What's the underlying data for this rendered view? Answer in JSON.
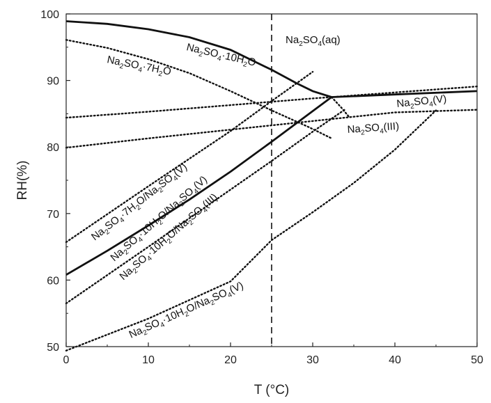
{
  "chart_data": {
    "type": "line",
    "title": "",
    "xlabel": "T (°C)",
    "ylabel": "RH(%)",
    "xlim": [
      0,
      50
    ],
    "ylim": [
      50,
      100
    ],
    "xticks": [
      0,
      10,
      20,
      30,
      40,
      50
    ],
    "yticks": [
      50,
      60,
      70,
      80,
      90,
      100
    ],
    "grid": false,
    "vertical_reference": {
      "x": 25,
      "style": "dashed"
    },
    "series": [
      {
        "style": "solid",
        "x": [
          0,
          5,
          10,
          15,
          20,
          25,
          28,
          30,
          32.3
        ],
        "y": [
          98.9,
          98.5,
          97.7,
          96.5,
          94.6,
          91.6,
          89.6,
          88.4,
          87.5
        ]
      },
      {
        "style": "solid",
        "x": [
          32.3,
          40,
          50
        ],
        "y": [
          87.5,
          87.9,
          88.4
        ]
      },
      {
        "style": "solid",
        "x": [
          0,
          5,
          10,
          15,
          20,
          25,
          30,
          32.3
        ],
        "y": [
          60.8,
          64.4,
          68.2,
          72.1,
          76.3,
          80.8,
          85.4,
          87.5
        ]
      },
      {
        "style": "dotted",
        "x": [
          0,
          5,
          10,
          15,
          20,
          25,
          29.5,
          32.3
        ],
        "y": [
          96.1,
          94.9,
          93.2,
          91.1,
          88.4,
          85.5,
          83.0,
          81.3
        ]
      },
      {
        "style": "dotted",
        "x": [
          0,
          10,
          20,
          25,
          30
        ],
        "y": [
          65.7,
          74.1,
          82.4,
          86.9,
          91.3
        ]
      },
      {
        "style": "dotted",
        "x": [
          0,
          10,
          20,
          30,
          32.3,
          40,
          50
        ],
        "y": [
          84.4,
          85.3,
          86.3,
          87.3,
          87.5,
          88.2,
          89.1
        ]
      },
      {
        "style": "dotted",
        "x": [
          0,
          10,
          20,
          30,
          40,
          50
        ],
        "y": [
          79.9,
          81.3,
          82.6,
          83.9,
          85.2,
          85.6
        ]
      },
      {
        "style": "dotted",
        "x": [
          32.3,
          33.5,
          34.5
        ],
        "y": [
          87.5,
          85.9,
          84.4
        ]
      },
      {
        "style": "dotted",
        "x": [
          0,
          10,
          20,
          25,
          30,
          34
        ],
        "y": [
          56.5,
          65.0,
          73.6,
          77.9,
          82.3,
          85.7
        ]
      },
      {
        "style": "dotted",
        "x": [
          0,
          10,
          20,
          25,
          30,
          35,
          40,
          45
        ],
        "y": [
          49.4,
          54.2,
          59.8,
          66.0,
          70.2,
          74.6,
          79.6,
          85.5
        ]
      }
    ],
    "annotations": [
      {
        "parts": [
          [
            "Na",
            ""
          ],
          [
            "2",
            "sub"
          ],
          [
            "SO",
            ""
          ],
          [
            "4",
            "sub"
          ],
          [
            "(aq)",
            ""
          ]
        ]
      },
      {
        "parts": [
          [
            "Na",
            ""
          ],
          [
            "2",
            "sub"
          ],
          [
            "SO",
            ""
          ],
          [
            "4",
            "sub"
          ],
          [
            "·10H",
            ""
          ],
          [
            "2",
            "sub"
          ],
          [
            "O",
            ""
          ]
        ]
      },
      {
        "parts": [
          [
            "Na",
            ""
          ],
          [
            "2",
            "sub"
          ],
          [
            "SO",
            ""
          ],
          [
            "4",
            "sub"
          ],
          [
            "·7H",
            ""
          ],
          [
            "2",
            "sub"
          ],
          [
            "O",
            ""
          ]
        ]
      },
      {
        "parts": [
          [
            "Na",
            ""
          ],
          [
            "2",
            "sub"
          ],
          [
            "SO",
            ""
          ],
          [
            "4",
            "sub"
          ],
          [
            "(V)",
            ""
          ]
        ]
      },
      {
        "parts": [
          [
            "Na",
            ""
          ],
          [
            "2",
            "sub"
          ],
          [
            "SO",
            ""
          ],
          [
            "4",
            "sub"
          ],
          [
            "(III)",
            ""
          ]
        ]
      },
      {
        "parts": [
          [
            "Na",
            ""
          ],
          [
            "2",
            "sub"
          ],
          [
            "SO",
            ""
          ],
          [
            "4",
            "sub"
          ],
          [
            "·7H",
            ""
          ],
          [
            "2",
            "sub"
          ],
          [
            "O/Na",
            ""
          ],
          [
            "2",
            "sub"
          ],
          [
            "SO",
            ""
          ],
          [
            "4",
            "sub"
          ],
          [
            "(V)",
            ""
          ]
        ]
      },
      {
        "parts": [
          [
            "Na",
            ""
          ],
          [
            "2",
            "sub"
          ],
          [
            "SO",
            ""
          ],
          [
            "4",
            "sub"
          ],
          [
            "·10H",
            ""
          ],
          [
            "2",
            "sub"
          ],
          [
            "O/Na",
            ""
          ],
          [
            "2",
            "sub"
          ],
          [
            "SO",
            ""
          ],
          [
            "4",
            "sub"
          ],
          [
            "(V)",
            ""
          ]
        ]
      },
      {
        "parts": [
          [
            "Na",
            ""
          ],
          [
            "2",
            "sub"
          ],
          [
            "SO",
            ""
          ],
          [
            "4",
            "sub"
          ],
          [
            "·10H",
            ""
          ],
          [
            "2",
            "sub"
          ],
          [
            "O/Na",
            ""
          ],
          [
            "2",
            "sub"
          ],
          [
            "SO",
            ""
          ],
          [
            "4",
            "sub"
          ],
          [
            "(III)",
            ""
          ]
        ]
      },
      {
        "parts": [
          [
            "Na",
            ""
          ],
          [
            "2",
            "sub"
          ],
          [
            "SO",
            ""
          ],
          [
            "4",
            "sub"
          ],
          [
            "·10H",
            ""
          ],
          [
            "2",
            "sub"
          ],
          [
            "O/Na",
            ""
          ],
          [
            "2",
            "sub"
          ],
          [
            "SO",
            ""
          ],
          [
            "4",
            "sub"
          ],
          [
            "(V)",
            ""
          ]
        ]
      }
    ]
  }
}
